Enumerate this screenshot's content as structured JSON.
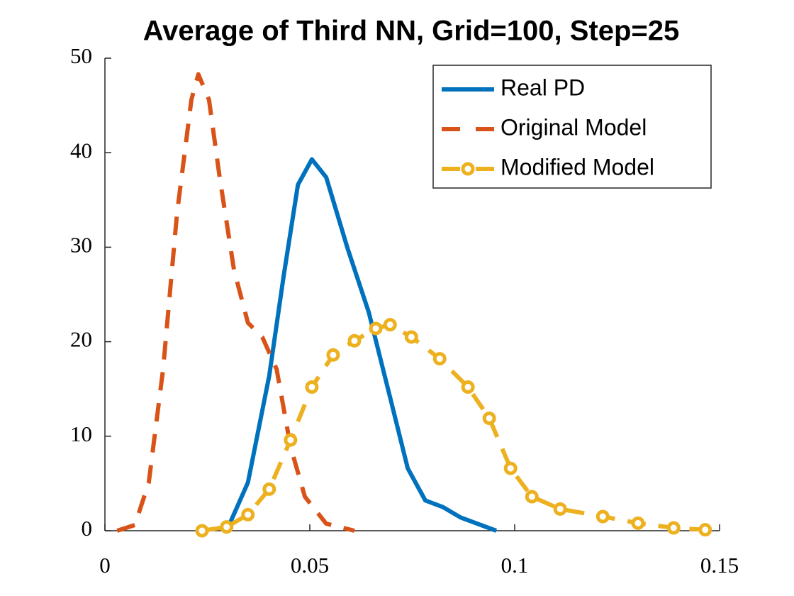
{
  "chart_data": {
    "type": "line",
    "title": "Average of Third NN, Grid=100, Step=25",
    "xlim": [
      0,
      0.15
    ],
    "xticks": [
      0,
      0.05,
      0.1,
      0.15
    ],
    "ylim": [
      0,
      50
    ],
    "yticks": [
      0,
      10,
      20,
      30,
      40,
      50
    ],
    "grid": false,
    "legend": "upper right",
    "series": [
      {
        "name": "Real PD",
        "color": "#0072bd",
        "dash": "solid",
        "marker": "none",
        "x": [
          0.0297,
          0.0349,
          0.0401,
          0.0436,
          0.0471,
          0.0505,
          0.054,
          0.0592,
          0.0644,
          0.0696,
          0.0739,
          0.0782,
          0.0825,
          0.0868,
          0.0955
        ],
        "values": [
          0,
          5.1,
          16.4,
          26.9,
          36.6,
          39.3,
          37.4,
          29.9,
          23.1,
          14.1,
          6.6,
          3.2,
          2.5,
          1.4,
          0
        ]
      },
      {
        "name": "Original Model",
        "color": "#d95319",
        "dash": "dashed",
        "marker": "none",
        "x": [
          0.003,
          0.0073,
          0.0107,
          0.0142,
          0.0176,
          0.0211,
          0.0228,
          0.0254,
          0.028,
          0.0315,
          0.0349,
          0.0384,
          0.0419,
          0.0453,
          0.0488,
          0.054,
          0.0609
        ],
        "values": [
          0,
          0.6,
          5.1,
          17.1,
          33.6,
          45.6,
          48.3,
          45.6,
          37.4,
          27.6,
          22.0,
          20.5,
          17.1,
          8.9,
          3.6,
          0.75,
          0
        ]
      },
      {
        "name": "Modified Model",
        "color": "#edb120",
        "dash": "dashed",
        "marker": "circle",
        "x": [
          0.0237,
          0.0297,
          0.0349,
          0.0401,
          0.0453,
          0.0505,
          0.0557,
          0.0609,
          0.0661,
          0.0696,
          0.0748,
          0.0817,
          0.0886,
          0.0938,
          0.099,
          0.1042,
          0.1111,
          0.1215,
          0.1301,
          0.1388,
          0.1465
        ],
        "values": [
          0,
          0.4,
          1.7,
          4.4,
          9.6,
          15.2,
          18.6,
          20.1,
          21.4,
          21.8,
          20.5,
          18.2,
          15.2,
          11.9,
          6.6,
          3.6,
          2.3,
          1.5,
          0.8,
          0.3,
          0.1
        ]
      }
    ]
  }
}
